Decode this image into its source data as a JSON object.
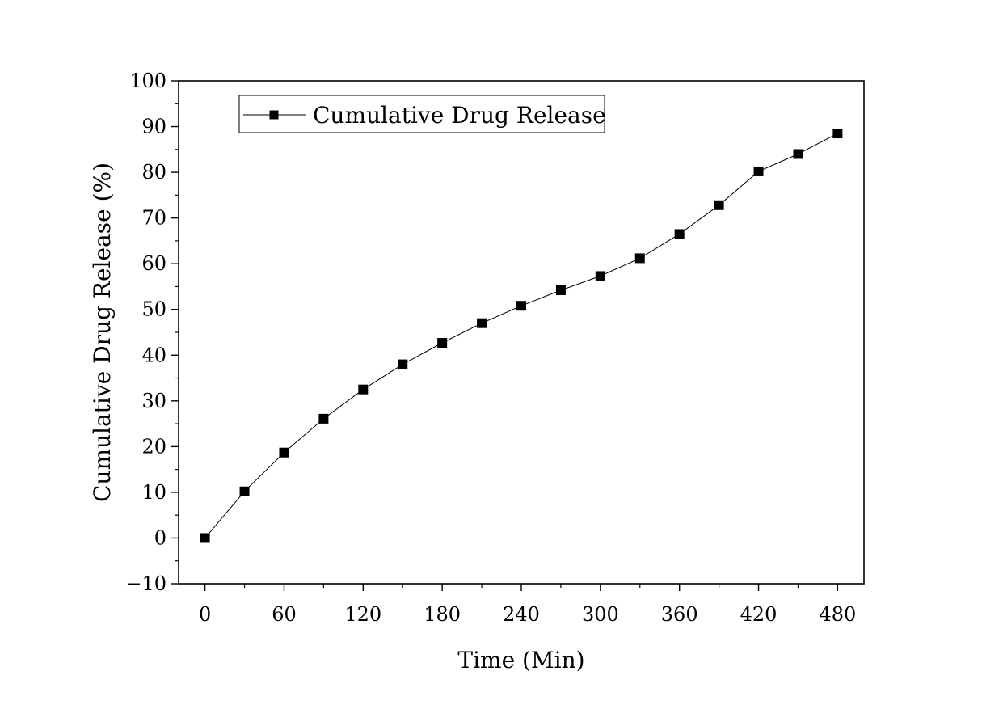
{
  "chart_data": {
    "type": "line",
    "title": "",
    "xlabel": "Time (Min)",
    "ylabel": "Cumulative Drug Release (%)",
    "xlim": [
      -20,
      500
    ],
    "ylim": [
      -10,
      100
    ],
    "x_ticks": [
      0,
      60,
      120,
      180,
      240,
      300,
      360,
      420,
      480
    ],
    "x_tick_labels": [
      "0",
      "60",
      "120",
      "180",
      "240",
      "300",
      "360",
      "420",
      "480"
    ],
    "y_ticks": [
      -10,
      0,
      10,
      20,
      30,
      40,
      50,
      60,
      70,
      80,
      90,
      100
    ],
    "y_tick_labels": [
      "−10",
      "0",
      "10",
      "20",
      "30",
      "40",
      "50",
      "60",
      "70",
      "80",
      "90",
      "100"
    ],
    "grid": false,
    "legend_position": "top-left",
    "series": [
      {
        "name": "Cumulative Drug Release",
        "color": "#000000",
        "marker": "square",
        "x": [
          0,
          30,
          60,
          90,
          120,
          150,
          180,
          210,
          240,
          270,
          300,
          330,
          360,
          390,
          420,
          450,
          480
        ],
        "y": [
          0,
          10.2,
          18.7,
          26.1,
          32.5,
          38.0,
          42.7,
          47.0,
          50.8,
          54.2,
          57.3,
          61.2,
          66.5,
          72.8,
          80.2,
          84.0,
          88.5
        ]
      }
    ]
  }
}
